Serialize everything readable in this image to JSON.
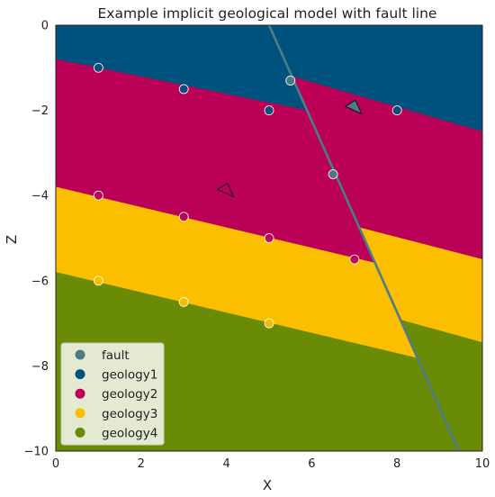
{
  "chart_data": {
    "type": "scatter",
    "title": "Example implicit geological model with fault line",
    "xlabel": "X",
    "ylabel": "Z",
    "xlim": [
      0,
      10
    ],
    "ylim": [
      -10,
      0
    ],
    "xticks": [
      "0",
      "2",
      "4",
      "6",
      "8",
      "10"
    ],
    "yticks": [
      "0",
      "−2",
      "−4",
      "−6",
      "−8",
      "−10"
    ],
    "grid": false,
    "legend_position": "lower-left",
    "fault_line": {
      "x": [
        5.0,
        9.45
      ],
      "z": [
        0,
        -10
      ],
      "color": "#4c7d87"
    },
    "units": [
      {
        "name": "geology1",
        "color": "#00527e"
      },
      {
        "name": "geology2",
        "color": "#bb0057"
      },
      {
        "name": "geology3",
        "color": "#fbbf00"
      },
      {
        "name": "geology4",
        "color": "#6a8b05"
      }
    ],
    "boundaries_left": {
      "g1_g2": {
        "x": [
          0,
          7.1
        ],
        "z": [
          -0.8,
          -2.25
        ]
      },
      "g2_g3": {
        "x": [
          0,
          7.55
        ],
        "z": [
          -3.8,
          -5.6
        ]
      },
      "g3_g4": {
        "x": [
          0,
          8.4
        ],
        "z": [
          -5.8,
          -7.8
        ]
      }
    },
    "boundaries_right": {
      "g1_g2": {
        "x": [
          6.55,
          10
        ],
        "z": [
          -1.5,
          -2.5
        ]
      },
      "g2_g3": {
        "x": [
          7.3,
          10
        ],
        "z": [
          -4.8,
          -5.5
        ]
      },
      "g3_g4": {
        "x": [
          8.55,
          10
        ],
        "z": [
          -7.05,
          -7.45
        ]
      }
    },
    "series": [
      {
        "name": "fault",
        "color": "#4c7d87",
        "points": [
          [
            5.5,
            -1.3
          ],
          [
            6.5,
            -3.5
          ]
        ]
      },
      {
        "name": "geology1",
        "color": "#00527e",
        "points": [
          [
            1,
            -1.0
          ],
          [
            3,
            -1.5
          ],
          [
            5,
            -2.0
          ],
          [
            8,
            -2.0
          ]
        ]
      },
      {
        "name": "geology2",
        "color": "#bb0057",
        "points": [
          [
            1,
            -4.0
          ],
          [
            3,
            -4.5
          ],
          [
            5,
            -5.0
          ],
          [
            7,
            -5.5
          ]
        ]
      },
      {
        "name": "geology3",
        "color": "#fbbf00",
        "points": [
          [
            1,
            -6.0
          ],
          [
            3,
            -6.5
          ],
          [
            5,
            -7.0
          ]
        ]
      },
      {
        "name": "geology4",
        "color": "#6a8b05",
        "points": []
      }
    ],
    "orientations": [
      {
        "x": 4.0,
        "z": -3.9,
        "filled": false
      },
      {
        "x": 7.0,
        "z": -1.95,
        "filled": true,
        "color": "#4c7d87"
      }
    ]
  }
}
